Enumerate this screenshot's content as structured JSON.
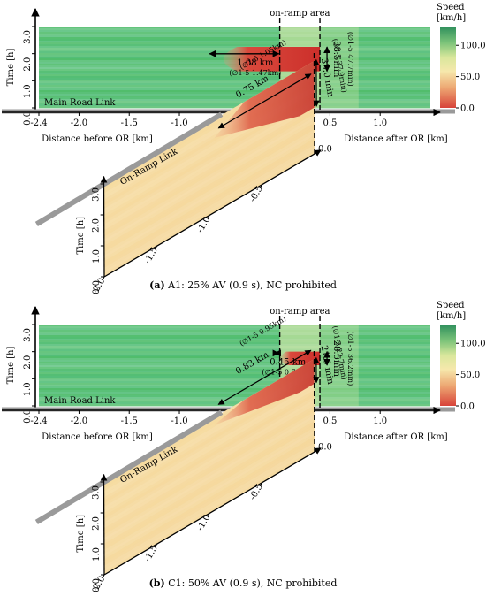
{
  "colors": {
    "speed_high": "#2e9a5e",
    "speed_mid": "#f5e7a8",
    "speed_low": "#d64531",
    "road": "#9a9a9a"
  },
  "chart_data": [
    {
      "type": "heatmap",
      "panel": "a",
      "caption_tag": "(a)",
      "caption": " A1: 25% AV (0.9 s), NC prohibited",
      "main_road": {
        "label": "Main Road Link",
        "zone_label": "on-ramp area",
        "ylabel": "Time [h]",
        "yticks": [
          "0.0",
          "1.0",
          "2.0",
          "3.0"
        ],
        "ylim": [
          0,
          3
        ],
        "xlim": [
          -2.4,
          1.5
        ],
        "xticks": [
          "-2.4",
          "-2.0",
          "-1.5",
          "-1.0",
          "-0.5",
          "0.0",
          "0.5",
          "1.0"
        ],
        "xlabel_left": "Distance before OR [km]",
        "xlabel_right": "Distance after OR [km]",
        "onramp_area_km": [
          0,
          0.4
        ],
        "congestion": {
          "x_start_km": -0.7,
          "x_end_km": 0.4,
          "t_start_h": 1.35,
          "t_end_h": 2.25
        },
        "annotations": {
          "length": "1.08 km",
          "length_avg": "(∅1-5 1.47km)",
          "duration": "38.5min",
          "duration_avg": "(∅1-5 47.7min)"
        }
      },
      "colorbar": {
        "title1": "Speed",
        "title2": "[km/h]",
        "ticks": [
          "100.0",
          "50.0",
          "0.0"
        ],
        "range": [
          0,
          130
        ]
      },
      "ramp": {
        "label": "On-Ramp Link",
        "ylabel": "Time [h]",
        "yticks": [
          "0.0",
          "1.0",
          "2.0",
          "3.0"
        ],
        "xticks": [
          "-2.0",
          "-1.5",
          "-1.0",
          "-0.5",
          "0.0"
        ],
        "end_label": "0.0",
        "congestion": {
          "x_start_km": -0.95,
          "x_end_km": 0.0,
          "t_start_h": 1.5,
          "t_end_h": 3.0
        },
        "annotations": {
          "length": "0.75 km",
          "length_avg": "(∅1-5 1.05km)",
          "duration": "33.0 min",
          "duration_avg": "(∅1-5 37.9min)"
        }
      }
    },
    {
      "type": "heatmap",
      "panel": "b",
      "caption_tag": "(b)",
      "caption": " C1: 50% AV (0.9 s), NC prohibited",
      "main_road": {
        "label": "Main Road Link",
        "zone_label": "on-ramp area",
        "ylabel": "Time [h]",
        "yticks": [
          "0.0",
          "1.0",
          "2.0",
          "3.0"
        ],
        "ylim": [
          0,
          3
        ],
        "xlim": [
          -2.4,
          1.5
        ],
        "xticks": [
          "-2.4",
          "-2.0",
          "-1.5",
          "-1.0",
          "-0.5",
          "0.0",
          "0.5",
          "1.0"
        ],
        "xlabel_left": "Distance before OR [km]",
        "xlabel_right": "Distance after OR [km]",
        "onramp_area_km": [
          0,
          0.4
        ],
        "congestion": {
          "x_start_km": -0.05,
          "x_end_km": 0.4,
          "t_start_h": 1.5,
          "t_end_h": 2.0
        },
        "annotations": {
          "length": "0.45 km",
          "length_avg": "(∅1-5 0.76km)",
          "duration": "28.5min",
          "duration_avg": "(∅1-5 36.2min)"
        }
      },
      "colorbar": {
        "title1": "Speed",
        "title2": "[km/h]",
        "ticks": [
          "100.0",
          "50.0",
          "0.0"
        ],
        "range": [
          0,
          130
        ]
      },
      "ramp": {
        "label": "On-Ramp Link",
        "ylabel": "Time [h]",
        "yticks": [
          "0.0",
          "1.0",
          "2.0",
          "3.0"
        ],
        "xticks": [
          "-2.0",
          "-1.5",
          "-1.0",
          "-0.5",
          "0.0"
        ],
        "end_label": "0.0",
        "congestion": {
          "x_start_km": -0.95,
          "x_end_km": 0.0,
          "t_start_h": 2.2,
          "t_end_h": 3.0
        },
        "annotations": {
          "length": "0.83 km",
          "length_avg": "(∅1-5 0.95km)",
          "duration": "21.5 min",
          "duration_avg": "(∅1-5 22.7min)"
        }
      }
    }
  ]
}
